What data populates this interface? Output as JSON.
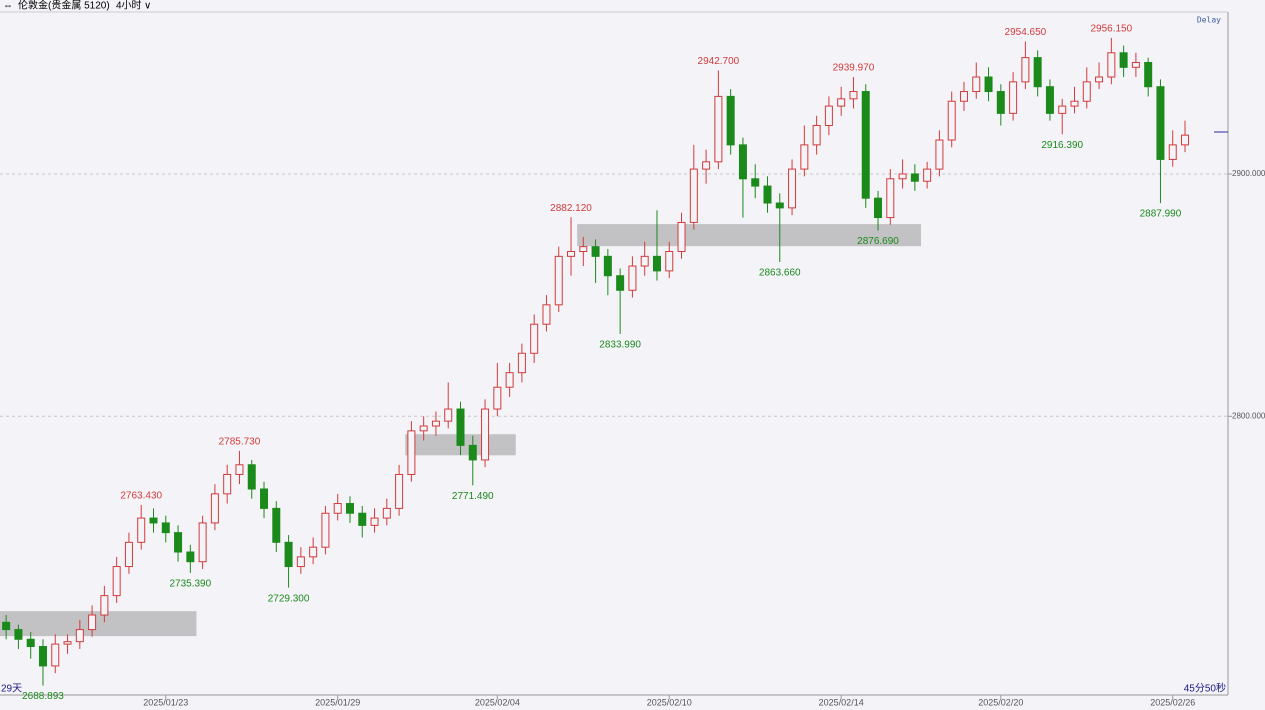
{
  "header": {
    "symbol": "伦敦金(贵金属 5120)",
    "period": "4小时",
    "delay": "Delay",
    "left_note": "29天",
    "countdown": "45分50秒"
  },
  "chart_data": {
    "type": "candlestick",
    "up_color": "#d23b3b",
    "down_color": "#1b8a1b",
    "ylim": [
      2685,
      2966
    ],
    "yticks": [
      {
        "value": 2800,
        "label": "2800.000"
      },
      {
        "value": 2900,
        "label": "2900.000"
      }
    ],
    "grid": true,
    "categories": [
      null,
      null,
      null,
      null,
      null,
      null,
      null,
      null,
      null,
      null,
      null,
      null,
      null,
      "2025/01/23",
      null,
      null,
      null,
      null,
      null,
      null,
      null,
      null,
      null,
      null,
      null,
      null,
      null,
      "2025/01/29",
      null,
      null,
      null,
      null,
      null,
      null,
      null,
      null,
      null,
      null,
      null,
      null,
      "2025/02/04",
      null,
      null,
      null,
      null,
      null,
      null,
      null,
      null,
      null,
      null,
      null,
      null,
      null,
      "2025/02/10",
      null,
      null,
      null,
      null,
      null,
      null,
      null,
      null,
      null,
      null,
      null,
      null,
      null,
      "2025/02/14",
      null,
      null,
      null,
      null,
      null,
      null,
      null,
      null,
      null,
      null,
      null,
      null,
      "2025/02/20",
      null,
      null,
      null,
      null,
      null,
      null,
      null,
      null,
      null,
      null,
      null,
      null,
      null,
      "2025/02/26",
      null
    ],
    "ohlc": [
      [
        2715,
        2718,
        2708,
        2712
      ],
      [
        2712,
        2714,
        2704,
        2708
      ],
      [
        2708,
        2711,
        2700,
        2705
      ],
      [
        2705,
        2708,
        2688.893,
        2697
      ],
      [
        2697,
        2710,
        2694,
        2706
      ],
      [
        2706,
        2710,
        2702,
        2707
      ],
      [
        2707,
        2716,
        2704,
        2712
      ],
      [
        2712,
        2722,
        2709,
        2718
      ],
      [
        2718,
        2730,
        2715,
        2726
      ],
      [
        2726,
        2742,
        2723,
        2738
      ],
      [
        2738,
        2752,
        2735,
        2748
      ],
      [
        2748,
        2763.43,
        2745,
        2758
      ],
      [
        2758,
        2762,
        2752,
        2756
      ],
      [
        2756,
        2759,
        2748,
        2752
      ],
      [
        2752,
        2755,
        2740,
        2744
      ],
      [
        2744,
        2747,
        2735.39,
        2740
      ],
      [
        2740,
        2759,
        2737,
        2756
      ],
      [
        2756,
        2772,
        2753,
        2768
      ],
      [
        2768,
        2780,
        2764,
        2776
      ],
      [
        2776,
        2785.73,
        2772,
        2780
      ],
      [
        2780,
        2782,
        2766,
        2770
      ],
      [
        2770,
        2773,
        2758,
        2762
      ],
      [
        2762,
        2765,
        2744,
        2748
      ],
      [
        2748,
        2751,
        2729.3,
        2738
      ],
      [
        2738,
        2746,
        2735,
        2742
      ],
      [
        2742,
        2750,
        2739,
        2746
      ],
      [
        2746,
        2763,
        2743,
        2760
      ],
      [
        2760,
        2768,
        2757,
        2764
      ],
      [
        2764,
        2767,
        2756,
        2760
      ],
      [
        2760,
        2763,
        2750,
        2755
      ],
      [
        2755,
        2762,
        2752,
        2758
      ],
      [
        2758,
        2766,
        2755,
        2762
      ],
      [
        2762,
        2780,
        2759,
        2776
      ],
      [
        2776,
        2798,
        2773,
        2794
      ],
      [
        2794,
        2800,
        2790,
        2796
      ],
      [
        2796,
        2802,
        2792,
        2798
      ],
      [
        2798,
        2814,
        2795,
        2803
      ],
      [
        2803,
        2806,
        2784,
        2788
      ],
      [
        2788,
        2792,
        2771.49,
        2782
      ],
      [
        2782,
        2807,
        2779,
        2803
      ],
      [
        2803,
        2822,
        2800,
        2812
      ],
      [
        2812,
        2822,
        2808,
        2818
      ],
      [
        2818,
        2830,
        2814,
        2826
      ],
      [
        2826,
        2842,
        2822,
        2838
      ],
      [
        2838,
        2850,
        2835,
        2846
      ],
      [
        2846,
        2870,
        2843,
        2866
      ],
      [
        2866,
        2882.12,
        2858,
        2868
      ],
      [
        2868,
        2874,
        2862,
        2870
      ],
      [
        2870,
        2873,
        2855,
        2866
      ],
      [
        2866,
        2869,
        2850,
        2858
      ],
      [
        2858,
        2861,
        2833.99,
        2852
      ],
      [
        2852,
        2866,
        2849,
        2862
      ],
      [
        2862,
        2872,
        2858,
        2866
      ],
      [
        2866,
        2885,
        2856,
        2860
      ],
      [
        2860,
        2872,
        2857,
        2868
      ],
      [
        2868,
        2884,
        2865,
        2880
      ],
      [
        2880,
        2912,
        2877,
        2902
      ],
      [
        2902,
        2910,
        2896,
        2905
      ],
      [
        2905,
        2942.7,
        2902,
        2932
      ],
      [
        2932,
        2935,
        2908,
        2912
      ],
      [
        2912,
        2915,
        2882,
        2898
      ],
      [
        2898,
        2904,
        2890,
        2895
      ],
      [
        2895,
        2899,
        2884,
        2888
      ],
      [
        2888,
        2892,
        2863.66,
        2886
      ],
      [
        2886,
        2906,
        2883,
        2902
      ],
      [
        2902,
        2920,
        2899,
        2912
      ],
      [
        2912,
        2924,
        2908,
        2920
      ],
      [
        2920,
        2932,
        2916,
        2928
      ],
      [
        2928,
        2936,
        2924,
        2931
      ],
      [
        2931,
        2939.97,
        2927,
        2934
      ],
      [
        2934,
        2937,
        2886,
        2890
      ],
      [
        2890,
        2893,
        2876.69,
        2882
      ],
      [
        2882,
        2902,
        2879,
        2898
      ],
      [
        2898,
        2906,
        2894,
        2900
      ],
      [
        2900,
        2904,
        2893,
        2897
      ],
      [
        2897,
        2905,
        2894,
        2902
      ],
      [
        2902,
        2918,
        2899,
        2914
      ],
      [
        2914,
        2934,
        2911,
        2930
      ],
      [
        2930,
        2938,
        2926,
        2934
      ],
      [
        2934,
        2946,
        2931,
        2940
      ],
      [
        2940,
        2944,
        2930,
        2934
      ],
      [
        2934,
        2937,
        2920,
        2925
      ],
      [
        2925,
        2942,
        2922,
        2938
      ],
      [
        2938,
        2954.65,
        2935,
        2948
      ],
      [
        2948,
        2951,
        2932,
        2936
      ],
      [
        2936,
        2939,
        2922,
        2925
      ],
      [
        2925,
        2931,
        2916.39,
        2928
      ],
      [
        2928,
        2936,
        2925,
        2930
      ],
      [
        2930,
        2944,
        2927,
        2938
      ],
      [
        2938,
        2946,
        2935,
        2940
      ],
      [
        2940,
        2956.15,
        2937,
        2950
      ],
      [
        2950,
        2953,
        2940,
        2944
      ],
      [
        2944,
        2950,
        2940,
        2946
      ],
      [
        2946,
        2948,
        2932,
        2936
      ],
      [
        2936,
        2939,
        2887.99,
        2906
      ],
      [
        2906,
        2918,
        2903,
        2912
      ],
      [
        2912,
        2922,
        2909,
        2916
      ]
    ],
    "annotations": [
      {
        "label": "2688.893",
        "value": 2688.893
      },
      {
        "label": "2763.430",
        "value": 2763.43
      },
      {
        "label": "2735.390",
        "value": 2735.39
      },
      {
        "label": "2785.730",
        "value": 2785.73
      },
      {
        "label": "2729.300",
        "value": 2729.3
      },
      {
        "label": "2771.490",
        "value": 2771.49
      },
      {
        "label": "2882.120",
        "value": 2882.12
      },
      {
        "label": "2833.990",
        "value": 2833.99
      },
      {
        "label": "2942.700",
        "value": 2942.7
      },
      {
        "label": "2863.660",
        "value": 2863.66
      },
      {
        "label": "2939.970",
        "value": 2939.97
      },
      {
        "label": "2876.690",
        "value": 2876.69
      },
      {
        "label": "2954.650",
        "value": 2954.65
      },
      {
        "label": "2916.390",
        "value": 2916.39
      },
      {
        "label": "2956.150",
        "value": 2956.15
      },
      {
        "label": "2887.990",
        "value": 2887.99
      }
    ],
    "zones": [
      {
        "low": 2709.3,
        "high": 2719.6,
        "start": 0,
        "end": 15
      },
      {
        "low": 2783.9,
        "high": 2792.6,
        "start": 33,
        "end": 41
      },
      {
        "low": 2870.2,
        "high": 2879.3,
        "start": 47,
        "end": 74
      }
    ]
  }
}
